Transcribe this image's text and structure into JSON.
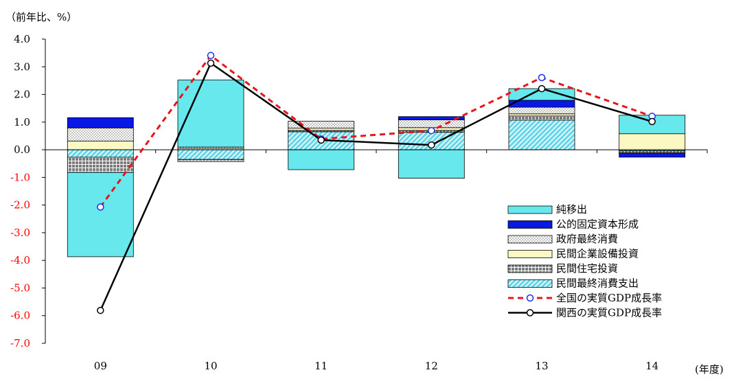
{
  "chart_data": {
    "type": "bar",
    "unit_label": "（前年比、%）",
    "x_unit_label": "(年度)",
    "categories": [
      "09",
      "10",
      "11",
      "12",
      "13",
      "14"
    ],
    "ylim": [
      -7.0,
      4.0
    ],
    "y_ticks": [
      "4.0",
      "3.0",
      "2.0",
      "1.0",
      "0.0",
      "-1.0",
      "-2.0",
      "-3.0",
      "-4.0",
      "-5.0",
      "-6.0",
      "-7.0"
    ],
    "grid": false,
    "legend_position": "bottom-right",
    "colors": {
      "positive_tick": "#000000",
      "negative_tick": "#ff0000",
      "national_line": "#e8141c",
      "kansai_line": "#000000",
      "marker_blue": "#1c2ee6"
    },
    "stack_order": [
      "民間最終消費支出",
      "民間住宅投資",
      "民間企業設備投資",
      "政府最終消費",
      "公的固定資本形成",
      "純移出"
    ],
    "bar_series": [
      {
        "name": "純移出",
        "color": "#66e8ec",
        "pattern": "solid",
        "values": [
          -3.05,
          2.42,
          -0.72,
          -1.03,
          0.42,
          0.67
        ]
      },
      {
        "name": "公的固定資本形成",
        "color": "#0a18e6",
        "pattern": "solid",
        "values": [
          0.37,
          0.0,
          0.0,
          0.12,
          0.25,
          -0.13
        ]
      },
      {
        "name": "政府最終消費",
        "color": "#ffffff",
        "pattern": "dots",
        "values": [
          0.48,
          0.05,
          0.25,
          0.28,
          0.24,
          -0.03
        ]
      },
      {
        "name": "民間企業設備投資",
        "color": "#fbf8c4",
        "pattern": "solid",
        "values": [
          0.31,
          0.05,
          0.08,
          0.1,
          0.08,
          0.58
        ]
      },
      {
        "name": "民間住宅投資",
        "color": "#808080",
        "pattern": "grid",
        "values": [
          -0.55,
          -0.08,
          0.05,
          0.07,
          0.15,
          -0.07
        ]
      },
      {
        "name": "民間最終消費支出",
        "color": "#66d8ea",
        "pattern": "hatch",
        "values": [
          -0.27,
          -0.35,
          0.65,
          0.63,
          1.07,
          -0.04
        ]
      }
    ],
    "line_series": [
      {
        "name": "全国の実質GDP成長率",
        "style": "dashed",
        "color": "#e8141c",
        "marker": "open-circle-blue",
        "values": [
          -2.07,
          3.41,
          0.39,
          0.69,
          2.61,
          1.21
        ]
      },
      {
        "name": "関西の実質GDP成長率",
        "style": "solid",
        "color": "#000000",
        "marker": "open-circle-black",
        "values": [
          -5.81,
          3.13,
          0.35,
          0.17,
          2.21,
          1.02
        ]
      }
    ],
    "legend": [
      {
        "name": "純移出",
        "kind": "bar"
      },
      {
        "name": "公的固定資本形成",
        "kind": "bar"
      },
      {
        "name": "政府最終消費",
        "kind": "bar"
      },
      {
        "name": "民間企業設備投資",
        "kind": "bar"
      },
      {
        "name": "民間住宅投資",
        "kind": "bar"
      },
      {
        "name": "民間最終消費支出",
        "kind": "bar"
      },
      {
        "name": "全国の実質GDP成長率",
        "kind": "line"
      },
      {
        "name": "関西の実質GDP成長率",
        "kind": "line"
      }
    ]
  }
}
